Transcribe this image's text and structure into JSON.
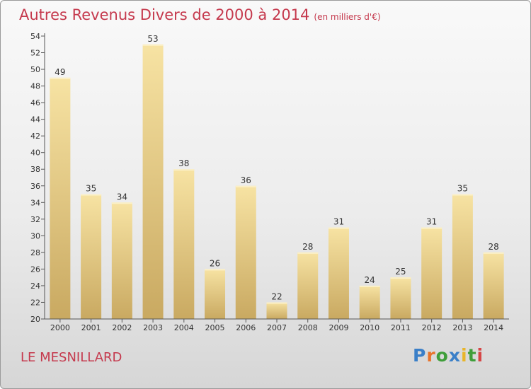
{
  "title": "Autres Revenus Divers de 2000 à 2014",
  "title_unit": "(en milliers d'€)",
  "location": "LE MESNILLARD",
  "logo": {
    "text": "Proxiti",
    "letters": [
      "P",
      "r",
      "o",
      "x",
      "i",
      "t",
      "i"
    ],
    "colors": [
      "#3a7fc8",
      "#e8732a",
      "#3f9e3a",
      "#3a7fc8",
      "#e8b52a",
      "#3f9e3a",
      "#d64545"
    ]
  },
  "colors": {
    "title": "#c5394d",
    "bar_top": "#f7e3a3",
    "bar_bottom": "#c9a961",
    "axis": "#555555"
  },
  "chart_data": {
    "type": "bar",
    "categories": [
      "2000",
      "2001",
      "2002",
      "2003",
      "2004",
      "2005",
      "2006",
      "2007",
      "2008",
      "2009",
      "2010",
      "2011",
      "2012",
      "2013",
      "2014"
    ],
    "values": [
      49,
      35,
      34,
      53,
      38,
      26,
      36,
      22,
      28,
      31,
      24,
      25,
      31,
      35,
      28
    ],
    "ylim": [
      20,
      54
    ],
    "yticks": [
      20,
      22,
      24,
      26,
      28,
      30,
      32,
      34,
      36,
      38,
      40,
      42,
      44,
      46,
      48,
      50,
      52,
      54
    ],
    "title": "Autres Revenus Divers de 2000 à 2014",
    "xlabel": "",
    "ylabel": "",
    "grid": false,
    "data_labels": true
  }
}
